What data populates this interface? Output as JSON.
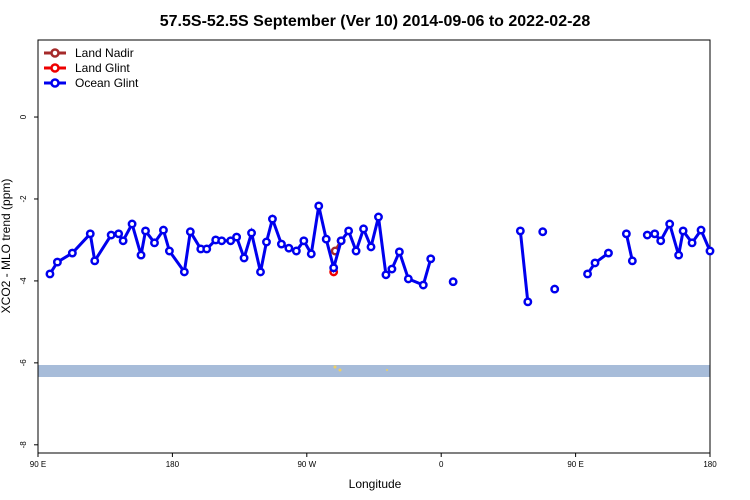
{
  "chart_data": {
    "type": "line",
    "title": "57.5S-52.5S September (Ver 10)   2014-09-06 to 2022-02-28",
    "x_label": "Longitude",
    "y_label": "XCO2 - MLO trend (ppm)",
    "xlim": [
      90,
      540
    ],
    "ylim": [
      -8.2,
      1.88
    ],
    "xticks": [
      {
        "value": 90,
        "label": "90 E"
      },
      {
        "value": 180,
        "label": "180"
      },
      {
        "value": 270,
        "label": "90 W"
      },
      {
        "value": 360,
        "label": "0"
      },
      {
        "value": 450,
        "label": "90 E"
      },
      {
        "value": 540,
        "label": "180"
      }
    ],
    "yticks": [
      0,
      -2,
      -4,
      -6,
      -8
    ],
    "legend": "top-left",
    "series": [
      {
        "name": "Land Nadir",
        "color": "#a52a2a",
        "x": [
          289,
          293
        ],
        "values": [
          -3.27,
          -3.02
        ]
      },
      {
        "name": "Land Glint",
        "color": "#ee0000",
        "x": [
          288
        ],
        "values": [
          -3.78
        ]
      },
      {
        "name": "Ocean Glint",
        "color": "#0000ee",
        "x": [
          98,
          103,
          113,
          125,
          128,
          139,
          144,
          147,
          153,
          159,
          162,
          168,
          174,
          178,
          188,
          192,
          199,
          203,
          209,
          213,
          219,
          223,
          228,
          233,
          239,
          243,
          247,
          253,
          258,
          263,
          268,
          273,
          278,
          283,
          288,
          293,
          298,
          303,
          308,
          313,
          318,
          323,
          327,
          332,
          338,
          348,
          353,
          null,
          368,
          null,
          413,
          418,
          null,
          428,
          null,
          436,
          null,
          458,
          463,
          472,
          null,
          484,
          488,
          null,
          498,
          503,
          507,
          513,
          519,
          522,
          528,
          534,
          540
        ],
        "values": [
          -3.83,
          -3.54,
          -3.32,
          -2.85,
          -3.51,
          -2.88,
          -2.85,
          -3.02,
          -2.61,
          -3.37,
          -2.78,
          -3.07,
          -2.76,
          -3.27,
          -3.78,
          -2.8,
          -3.22,
          -3.22,
          -3.0,
          -3.02,
          -3.02,
          -2.93,
          -3.44,
          -2.83,
          -3.78,
          -3.05,
          -2.49,
          -3.1,
          -3.2,
          -3.27,
          -3.02,
          -3.34,
          -2.17,
          -2.98,
          -3.68,
          -3.02,
          -2.78,
          -3.27,
          -2.73,
          -3.17,
          -2.44,
          -3.85,
          -3.71,
          -3.29,
          -3.95,
          -4.1,
          -3.46,
          null,
          -4.02,
          null,
          -2.78,
          -4.51,
          null,
          -2.8,
          null,
          -4.2,
          null,
          -3.83,
          -3.56,
          -3.32,
          null,
          -2.85,
          -3.51,
          null,
          -2.88,
          -2.85,
          -3.02,
          -2.61,
          -3.37,
          -2.78,
          -3.07,
          -2.76,
          -3.27
        ]
      }
    ]
  }
}
